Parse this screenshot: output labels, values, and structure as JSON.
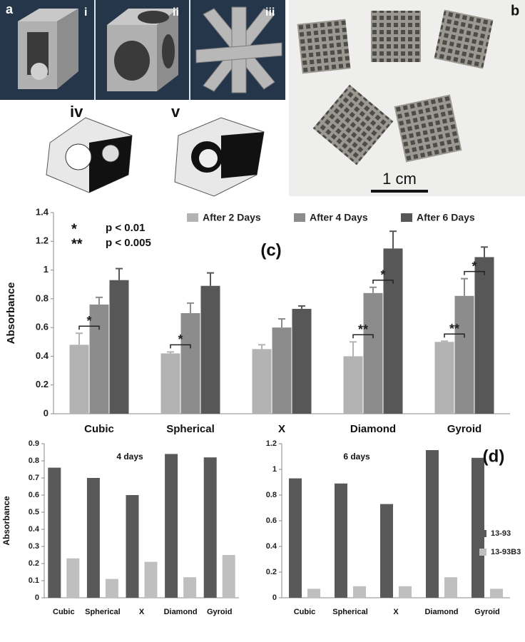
{
  "panels": {
    "a": {
      "label": "a",
      "parts": [
        "i",
        "ii",
        "iii",
        "iv",
        "v"
      ]
    },
    "b": {
      "label": "b",
      "scale_bar": "1 cm"
    }
  },
  "chart_data": [
    {
      "type": "bar",
      "panel_label": "(c)",
      "ylabel": "Absorbance",
      "categories": [
        "Cubic",
        "Spherical",
        "X",
        "Diamond",
        "Gyroid"
      ],
      "series": [
        {
          "name": "After 2 Days",
          "color": "#b3b3b3",
          "values": [
            0.48,
            0.42,
            0.45,
            0.4,
            0.5
          ],
          "errors": [
            0.08,
            0.01,
            0.03,
            0.1,
            0.005
          ]
        },
        {
          "name": "After 4 Days",
          "color": "#8c8c8c",
          "values": [
            0.76,
            0.7,
            0.6,
            0.84,
            0.82
          ],
          "errors": [
            0.05,
            0.07,
            0.06,
            0.04,
            0.12
          ],
          "significance": [
            "*",
            "*",
            null,
            "**",
            "**"
          ]
        },
        {
          "name": "After 6 Days",
          "color": "#575757",
          "values": [
            0.93,
            0.89,
            0.73,
            1.15,
            1.09
          ],
          "errors": [
            0.08,
            0.09,
            0.02,
            0.12,
            0.07
          ],
          "significance": [
            null,
            null,
            null,
            "*",
            "*"
          ]
        }
      ],
      "notes": [
        {
          "symbol": "*",
          "text": "p < 0.01"
        },
        {
          "symbol": "**",
          "text": "p < 0.005"
        }
      ],
      "ylim": [
        0,
        1.4
      ],
      "yticks": [
        0,
        0.2,
        0.4,
        0.6,
        0.8,
        1,
        1.2,
        1.4
      ],
      "legend": "top"
    },
    {
      "type": "bar",
      "title": "4 days",
      "ylabel": "Absorbance",
      "categories": [
        "Cubic",
        "Spherical",
        "X",
        "Diamond",
        "Gyroid"
      ],
      "series": [
        {
          "color": "#595959",
          "values": [
            0.76,
            0.7,
            0.6,
            0.84,
            0.82
          ]
        },
        {
          "color": "#bfbfbf",
          "values": [
            0.23,
            0.11,
            0.21,
            0.12,
            0.25
          ]
        }
      ],
      "ylim": [
        0,
        0.9
      ],
      "yticks": [
        0,
        0.1,
        0.2,
        0.3,
        0.4,
        0.5,
        0.6,
        0.7,
        0.8,
        0.9
      ]
    },
    {
      "type": "bar",
      "title": "6 days",
      "panel_label": "(d)",
      "categories": [
        "Cubic",
        "Spherical",
        "X",
        "Diamond",
        "Gyroid"
      ],
      "series": [
        {
          "name": "13-93",
          "color": "#595959",
          "values": [
            0.93,
            0.89,
            0.73,
            1.15,
            1.09
          ]
        },
        {
          "name": "13-93B3",
          "color": "#bfbfbf",
          "values": [
            0.07,
            0.09,
            0.09,
            0.16,
            0.07
          ]
        }
      ],
      "ylim": [
        0,
        1.2
      ],
      "yticks": [
        0,
        0.2,
        0.4,
        0.6,
        0.8,
        1,
        1.2
      ],
      "legend": "right"
    }
  ]
}
